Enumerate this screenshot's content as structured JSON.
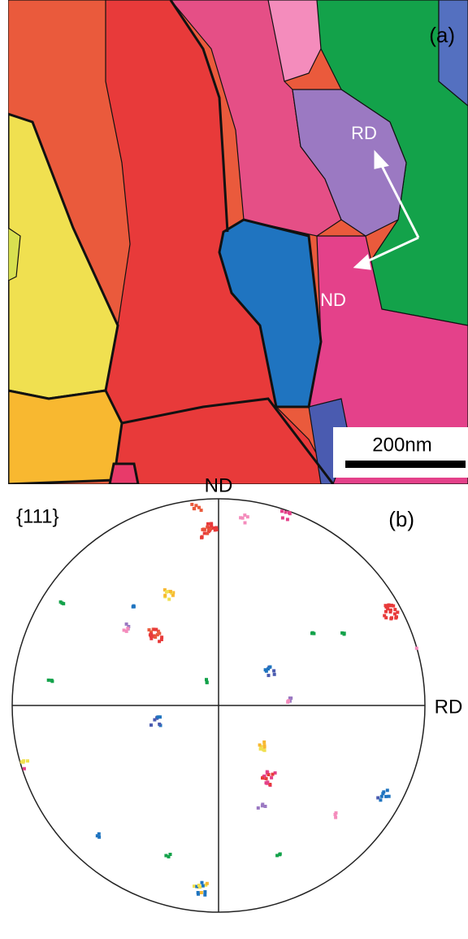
{
  "panel_a": {
    "label": "(a)",
    "arrow_labels": [
      "RD",
      "ND"
    ],
    "scale_bar": "200nm"
  },
  "panel_b": {
    "plane": "{111}",
    "label": "(b)",
    "top_axis": "ND",
    "right_axis": "RD"
  }
}
